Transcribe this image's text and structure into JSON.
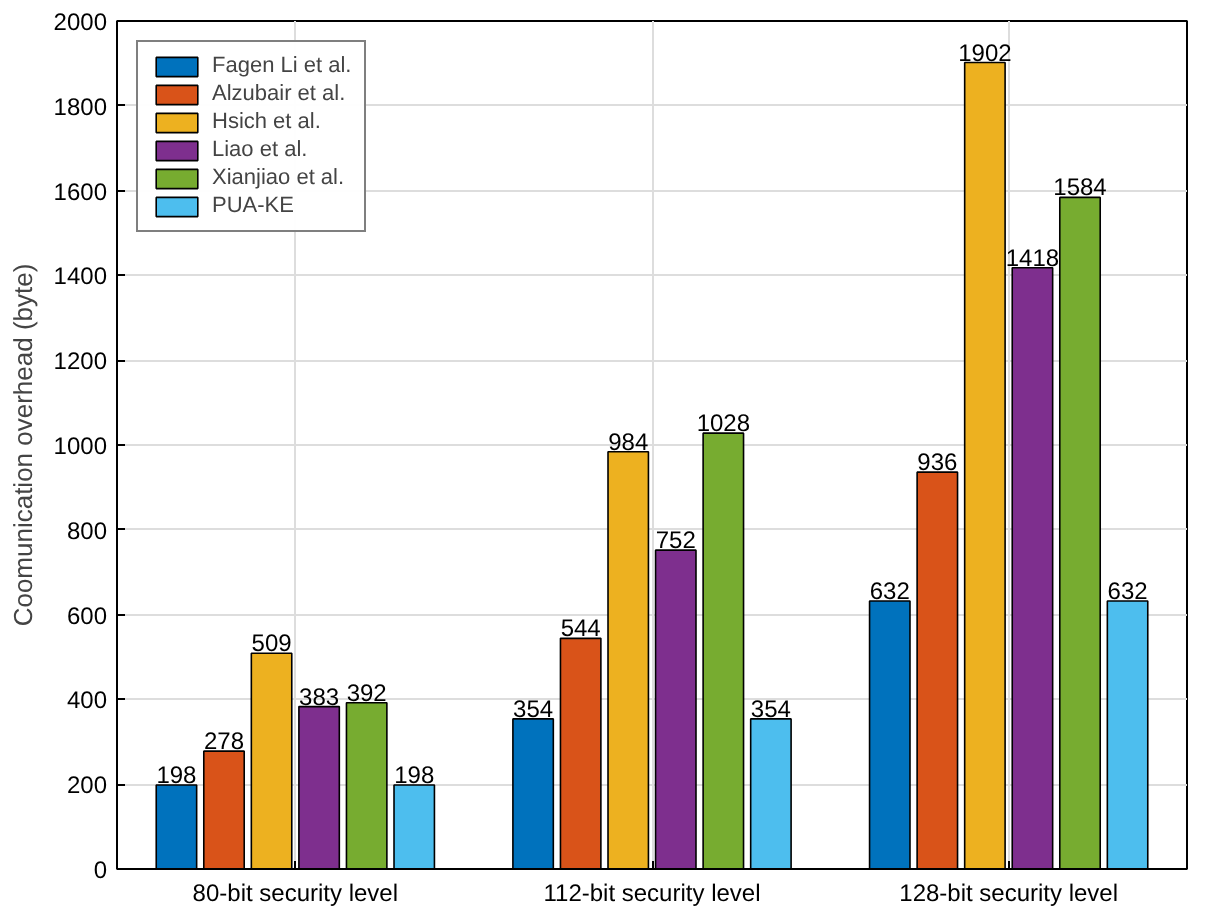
{
  "chart_data": {
    "type": "bar",
    "ylabel": "Coomunication overhead (byte)",
    "categories": [
      "80-bit security level",
      "112-bit security level",
      "128-bit security level"
    ],
    "series": [
      {
        "name": "Fagen Li et al.",
        "color": "#0072bd",
        "values": [
          198,
          354,
          632
        ]
      },
      {
        "name": "Alzubair et al.",
        "color": "#d95319",
        "values": [
          278,
          544,
          936
        ]
      },
      {
        "name": "Hsich et al.",
        "color": "#edb120",
        "values": [
          509,
          984,
          1902
        ]
      },
      {
        "name": "Liao et al.",
        "color": "#7e2f8e",
        "values": [
          383,
          752,
          1418
        ]
      },
      {
        "name": "Xianjiao et al.",
        "color": "#77ac30",
        "values": [
          392,
          1028,
          1584
        ]
      },
      {
        "name": "PUA-KE",
        "color": "#4dbeee",
        "values": [
          198,
          354,
          632
        ]
      }
    ],
    "ylim": [
      0,
      2000
    ],
    "yticks": [
      0,
      200,
      400,
      600,
      800,
      1000,
      1200,
      1400,
      1600,
      1800,
      2000
    ],
    "grid": true,
    "legend": "top left",
    "data_labels": true
  }
}
